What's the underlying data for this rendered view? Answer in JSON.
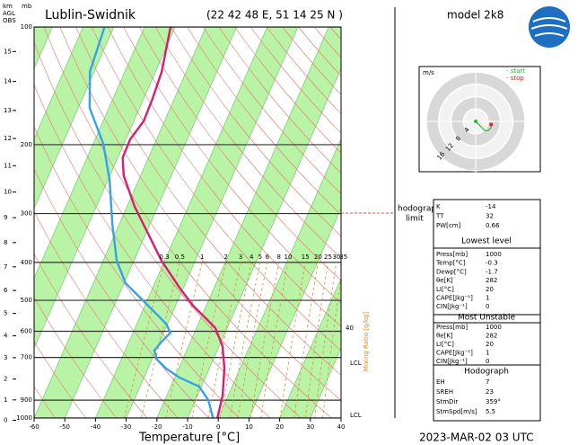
{
  "header": {
    "station": "Lublin-Swidnik",
    "coords": "(22 42 48 E, 51 14 25 N )",
    "model": "model 2k8",
    "valid": "2023-MAR-02   03 UTC",
    "km_label": "km",
    "agl_label": "AGL",
    "obs_label": "OBS",
    "mb_label": "mb"
  },
  "chart_data": {
    "type": "skew-t",
    "xlabel": "Temperature [°C]",
    "xlim": [
      -60,
      40
    ],
    "xticks": [
      -60,
      -50,
      -40,
      -30,
      -20,
      -10,
      0,
      10,
      20,
      30,
      40
    ],
    "ylim": [
      1000,
      100
    ],
    "yticks": [
      1000,
      900,
      700,
      600,
      500,
      400,
      300,
      200,
      100
    ],
    "log_y": true,
    "km_ticks": [
      0,
      1,
      2,
      3,
      4,
      5,
      6,
      7,
      8,
      9,
      10,
      11,
      12,
      13,
      14,
      15
    ],
    "series": [
      {
        "color": "#d81e6c",
        "pressure": [
          1000,
          876,
          747,
          655,
          589,
          558,
          516,
          464,
          396,
          338,
          288,
          240,
          216,
          194,
          174,
          153,
          130,
          100
        ],
        "values": [
          -0.3,
          -1.8,
          -5.1,
          -8.9,
          -13.8,
          -18,
          -24.3,
          -31.3,
          -41,
          -49.2,
          -57.5,
          -65.5,
          -68.4,
          -68.6,
          -66.8,
          -67.1,
          -68,
          -71.5
        ]
      },
      {
        "color": "#3aa0e8",
        "pressure": [
          1000,
          900,
          831,
          788,
          747,
          709,
          672,
          638,
          605,
          574,
          530,
          489,
          452,
          396,
          320,
          246,
          199,
          161,
          130,
          100
        ],
        "values": [
          -1.7,
          -5.8,
          -10.7,
          -18.4,
          -24.1,
          -28.3,
          -30.5,
          -29.4,
          -27.8,
          -30.5,
          -36.8,
          -43.2,
          -49.5,
          -55.6,
          -62.2,
          -69.5,
          -76.7,
          -86.3,
          -91.4,
          -93
        ]
      }
    ],
    "mixing_ratio": {
      "label": "Mixing Ratio [g/kg]",
      "color": "#e08a2a",
      "values": [
        0.3,
        0.5,
        1,
        2,
        3,
        4,
        5,
        6,
        8,
        10,
        15,
        20,
        25,
        30,
        35
      ]
    },
    "annotations": [
      "40",
      "LCL",
      "LCL"
    ],
    "hodograph_limit": [
      "hodograph",
      "limit"
    ]
  },
  "hodograph": {
    "unit": "m/s",
    "start": "- start",
    "stop": "- stop",
    "rings": [
      4,
      8,
      12,
      16
    ],
    "u": [
      0,
      1,
      2,
      3,
      4,
      5,
      5
    ],
    "v": [
      0,
      -1,
      -2,
      -3,
      -3,
      -2,
      -1
    ]
  },
  "indices": {
    "top": [
      {
        "label": "K",
        "value": -14
      },
      {
        "label": "TT",
        "value": 32
      },
      {
        "label": "PW[cm]",
        "value": 0.66
      }
    ],
    "lowest_title": "Lowest level",
    "lowest": [
      {
        "label": "Press[mb]",
        "value": 1000
      },
      {
        "label": "Temp[°C]",
        "value": -0.3
      },
      {
        "label": "Dewp[°C]",
        "value": -1.7
      },
      {
        "label": "θe[K]",
        "value": 282
      },
      {
        "label": "LI[°C]",
        "value": 20
      },
      {
        "label": "CAPE[Jkg⁻¹]",
        "value": 1
      },
      {
        "label": "CIN[Jkg⁻¹]",
        "value": 0
      }
    ],
    "unstable_title": "Most Unstable",
    "unstable": [
      {
        "label": "Press[mb]",
        "value": 1000
      },
      {
        "label": "θe[K]",
        "value": 282
      },
      {
        "label": "LI[°C]",
        "value": 20
      },
      {
        "label": "CAPE[Jkg⁻¹]",
        "value": 1
      },
      {
        "label": "CIN[Jkg⁻¹]",
        "value": 0
      }
    ],
    "hodo_title": "Hodograph",
    "hodo": [
      {
        "label": "EH",
        "value": 7
      },
      {
        "label": "SREH",
        "value": 23
      },
      {
        "label": "StmDir",
        "value": "359°"
      },
      {
        "label": "StmSpd[m/s]",
        "value": 5.5
      }
    ]
  }
}
